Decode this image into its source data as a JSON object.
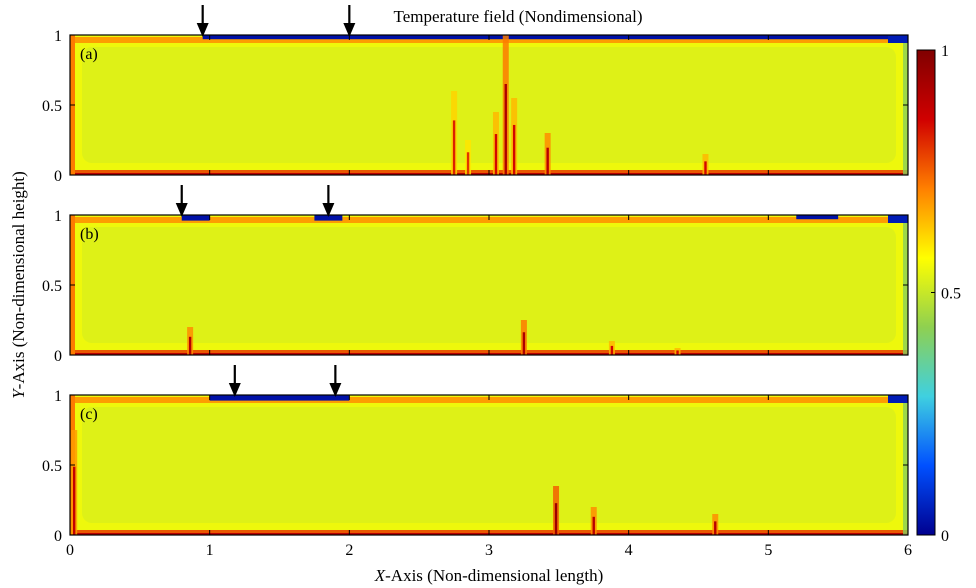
{
  "chart_data": {
    "type": "heatmap",
    "title": "Temperature field (Nondimensional)",
    "xlabel_prefix": "X",
    "xlabel_rest": "-Axis (Non-dimensional length)",
    "ylabel_prefix": "Y",
    "ylabel_rest": "-Axis (Non-dimensional height)",
    "xlim": [
      0,
      6
    ],
    "ylim": [
      0,
      1
    ],
    "x_ticks": [
      "0",
      "1",
      "2",
      "3",
      "4",
      "5",
      "6"
    ],
    "x_tick_values": [
      0,
      1,
      2,
      3,
      4,
      5,
      6
    ],
    "y_ticks": [
      "0",
      "0.5",
      "1"
    ],
    "y_tick_values": [
      0,
      0.5,
      1
    ],
    "colorbar": {
      "range": [
        0,
        1
      ],
      "ticks": [
        "0",
        "0.5",
        "1"
      ],
      "tick_values": [
        0,
        0.5,
        1
      ],
      "colormap": "jet",
      "colors": [
        "#00008f",
        "#0050ff",
        "#3fd0e0",
        "#8fd050",
        "#ffff00",
        "#ff8000",
        "#d00000",
        "#800000"
      ]
    },
    "background_value": 0.55,
    "panels": [
      {
        "label": "(a)",
        "arrows_x": [
          0.95,
          2.0
        ],
        "cold_zones": [
          {
            "x0": 0.95,
            "x1": 5.95,
            "depth": 0.03
          }
        ],
        "plumes": [
          {
            "x": 3.12,
            "height": 1.0,
            "value": 0.92
          },
          {
            "x": 3.05,
            "height": 0.45,
            "value": 0.85
          },
          {
            "x": 3.42,
            "height": 0.3,
            "value": 0.9
          },
          {
            "x": 2.75,
            "height": 0.6,
            "value": 0.82
          },
          {
            "x": 2.85,
            "height": 0.25,
            "value": 0.8
          },
          {
            "x": 3.18,
            "height": 0.55,
            "value": 0.85
          },
          {
            "x": 4.55,
            "height": 0.15,
            "value": 0.85
          }
        ]
      },
      {
        "label": "(b)",
        "arrows_x": [
          0.8,
          1.85
        ],
        "cold_zones": [
          {
            "x0": 0.8,
            "x1": 1.0,
            "depth": 0.04
          },
          {
            "x0": 1.75,
            "x1": 1.95,
            "depth": 0.04
          },
          {
            "x0": 5.2,
            "x1": 5.5,
            "depth": 0.03
          }
        ],
        "plumes": [
          {
            "x": 3.25,
            "height": 0.25,
            "value": 0.92
          },
          {
            "x": 0.86,
            "height": 0.2,
            "value": 0.9
          },
          {
            "x": 3.88,
            "height": 0.1,
            "value": 0.85
          },
          {
            "x": 4.35,
            "height": 0.05,
            "value": 0.85
          }
        ]
      },
      {
        "label": "(c)",
        "arrows_x": [
          1.18,
          1.9
        ],
        "cold_zones": [
          {
            "x0": 1.0,
            "x1": 2.0,
            "depth": 0.04
          }
        ],
        "plumes": [
          {
            "x": 3.48,
            "height": 0.35,
            "value": 0.95
          },
          {
            "x": 3.75,
            "height": 0.2,
            "value": 0.9
          },
          {
            "x": 4.62,
            "height": 0.15,
            "value": 0.9
          },
          {
            "x": 0.03,
            "height": 0.75,
            "value": 0.88
          }
        ]
      }
    ]
  }
}
